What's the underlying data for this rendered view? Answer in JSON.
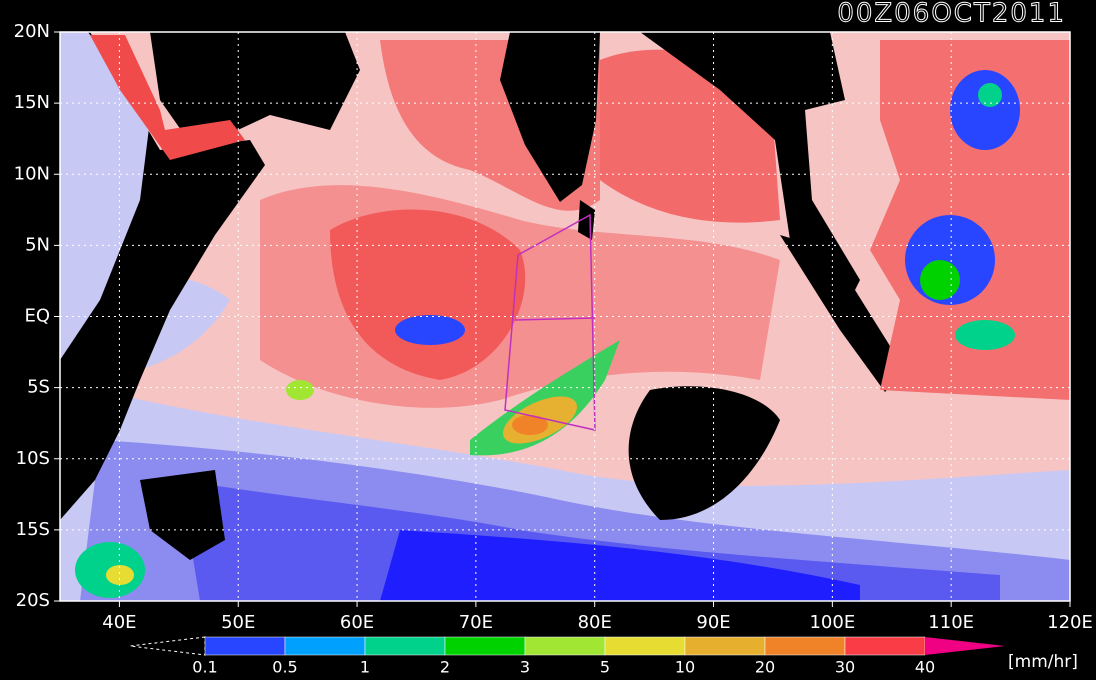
{
  "header": {
    "title": "00Z06OCT2011"
  },
  "map": {
    "lon_range": [
      35,
      120
    ],
    "lat_range": [
      -20,
      20
    ],
    "grid": true,
    "lat_ticks": [
      {
        "value": 20,
        "label": "20N"
      },
      {
        "value": 15,
        "label": "15N"
      },
      {
        "value": 10,
        "label": "10N"
      },
      {
        "value": 5,
        "label": "5N"
      },
      {
        "value": 0,
        "label": "EQ"
      },
      {
        "value": -5,
        "label": "5S"
      },
      {
        "value": -10,
        "label": "10S"
      },
      {
        "value": -15,
        "label": "15S"
      },
      {
        "value": -20,
        "label": "20S"
      }
    ],
    "lon_ticks": [
      {
        "value": 40,
        "label": "40E"
      },
      {
        "value": 50,
        "label": "50E"
      },
      {
        "value": 60,
        "label": "60E"
      },
      {
        "value": 70,
        "label": "70E"
      },
      {
        "value": 80,
        "label": "80E"
      },
      {
        "value": 90,
        "label": "90E"
      },
      {
        "value": 100,
        "label": "100E"
      },
      {
        "value": 110,
        "label": "110E"
      },
      {
        "value": 120,
        "label": "120E"
      }
    ]
  },
  "legend": {
    "boundaries": [
      0.1,
      0.5,
      1,
      2,
      3,
      5,
      10,
      20,
      30,
      40
    ],
    "colors": [
      "#2846ff",
      "#00a0ff",
      "#00d28c",
      "#00d200",
      "#a0e632",
      "#e6dc32",
      "#e6af2d",
      "#f08228",
      "#fa3c46",
      "#f00082"
    ],
    "unit": "[mm/hr]"
  }
}
